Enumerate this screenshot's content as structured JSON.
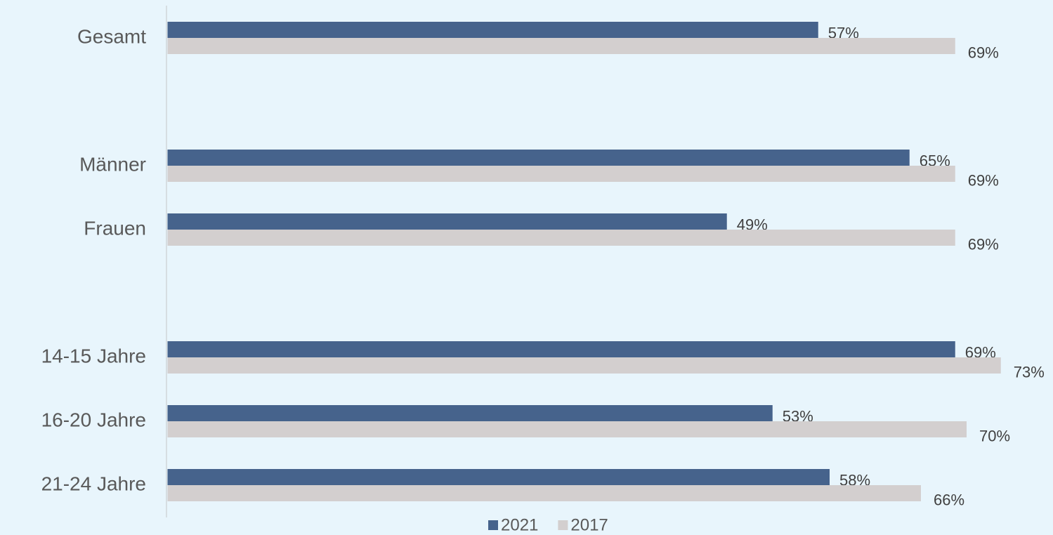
{
  "chart_data": {
    "type": "bar",
    "orientation": "horizontal",
    "categories": [
      "Gesamt",
      null,
      "Männer",
      "Frauen",
      null,
      "14-15 Jahre",
      "16-20 Jahre",
      "21-24 Jahre"
    ],
    "series": [
      {
        "name": "2021",
        "color": "#46638c",
        "values": [
          57,
          null,
          65,
          49,
          null,
          69,
          53,
          58
        ],
        "value_labels": [
          "57%",
          null,
          "65%",
          "49%",
          null,
          "69%",
          "53%",
          "58%"
        ]
      },
      {
        "name": "2017",
        "color": "#d3cfcf",
        "values": [
          69,
          null,
          69,
          69,
          null,
          73,
          70,
          66
        ],
        "value_labels": [
          "69%",
          null,
          "69%",
          "69%",
          null,
          "73%",
          "70%",
          "66%"
        ]
      }
    ],
    "legend": "bottom"
  }
}
